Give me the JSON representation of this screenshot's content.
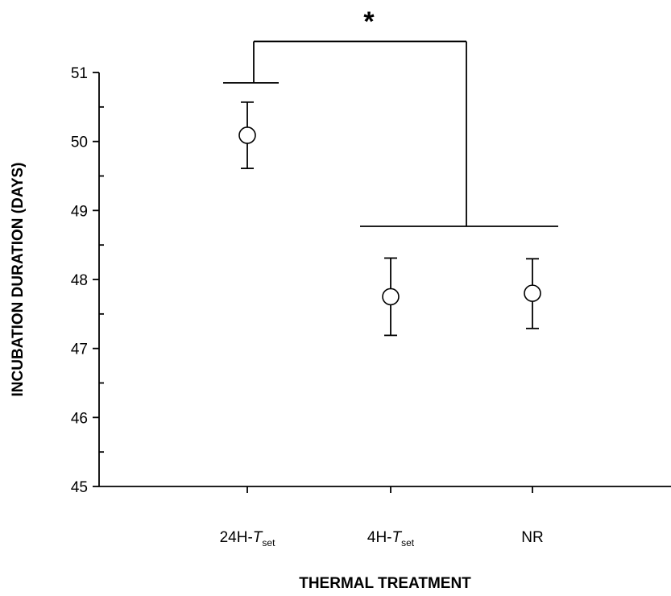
{
  "chart_data": {
    "type": "scatter",
    "xlabel": "THERMAL TREATMENT",
    "ylabel": "INCUBATION DURATION (DAYS)",
    "ylim": [
      45,
      51
    ],
    "yticks": [
      "45",
      "46",
      "47",
      "48",
      "49",
      "50",
      "51"
    ],
    "grid": false,
    "categories": [
      {
        "prefix": "24H-",
        "italic": "T",
        "sub": "set"
      },
      {
        "prefix": "4H-",
        "italic": "T",
        "sub": "set"
      },
      {
        "prefix": "NR",
        "italic": "",
        "sub": ""
      }
    ],
    "points": [
      {
        "mean": 50.09,
        "lower": 49.61,
        "upper": 50.57
      },
      {
        "mean": 47.75,
        "lower": 47.19,
        "upper": 48.31
      },
      {
        "mean": 47.8,
        "lower": 47.29,
        "upper": 48.3
      }
    ],
    "significance": {
      "label": "*",
      "group_a_level": 50.85,
      "group_b_level": 48.77,
      "bracket_top": 51.45
    }
  }
}
